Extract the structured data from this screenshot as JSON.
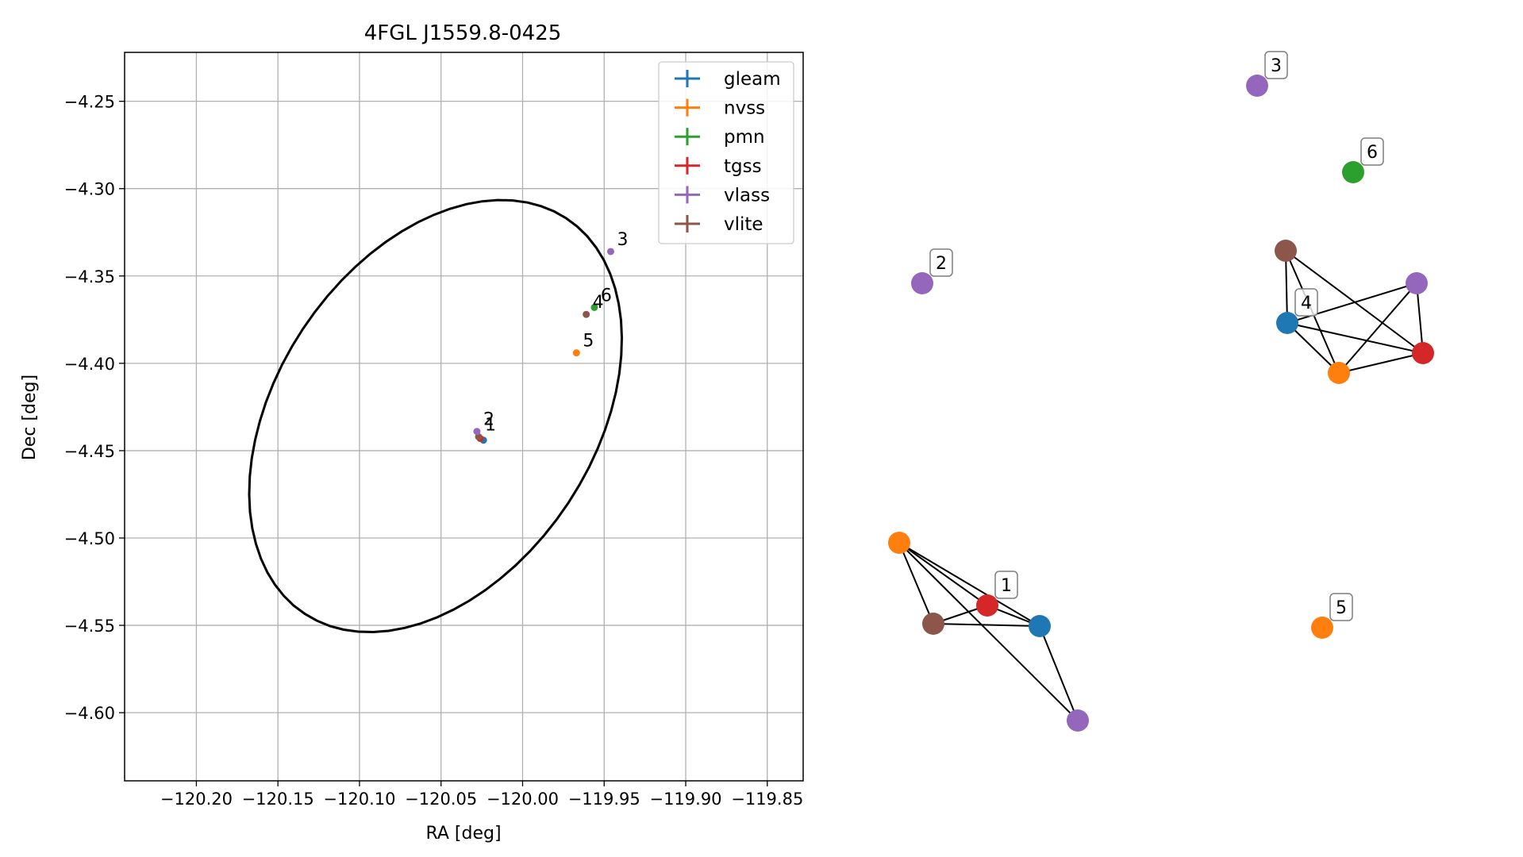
{
  "chart_data": [
    {
      "type": "scatter",
      "title": "4FGL J1559.8-0425",
      "xlabel": "RA [deg]",
      "ylabel": "Dec [deg]",
      "xlim": [
        -120.244,
        -119.828
      ],
      "ylim": [
        -4.639,
        -4.222
      ],
      "grid": true,
      "x_ticks": [
        -120.2,
        -120.15,
        -120.1,
        -120.05,
        -120.0,
        -119.95,
        -119.9,
        -119.85
      ],
      "x_tick_labels": [
        "−120.20",
        "−120.15",
        "−120.10",
        "−120.05",
        "−120.00",
        "−119.95",
        "−119.90",
        "−119.85"
      ],
      "y_ticks": [
        -4.25,
        -4.3,
        -4.35,
        -4.4,
        -4.45,
        -4.5,
        -4.55,
        -4.6
      ],
      "y_tick_labels": [
        "−4.25",
        "−4.30",
        "−4.35",
        "−4.40",
        "−4.45",
        "−4.50",
        "−4.55",
        "−4.60"
      ],
      "legend": {
        "placement": "top-right",
        "entries": [
          {
            "name": "gleam",
            "color": "#1f77b4"
          },
          {
            "name": "nvss",
            "color": "#ff7f0e"
          },
          {
            "name": "pmn",
            "color": "#2ca02c"
          },
          {
            "name": "tgss",
            "color": "#d62728"
          },
          {
            "name": "vlass",
            "color": "#9467bd"
          },
          {
            "name": "vlite",
            "color": "#8c564b"
          }
        ]
      },
      "ellipse": {
        "center": [
          -120.0534,
          -4.4302
        ],
        "semi_major": 0.139,
        "semi_minor": 0.095,
        "angle_deg": 51.3
      },
      "points": [
        {
          "survey": "gleam",
          "x": -120.024,
          "y": -4.444,
          "label": ""
        },
        {
          "survey": "tgss",
          "x": -120.026,
          "y": -4.443,
          "label": ""
        },
        {
          "survey": "vlite",
          "x": -120.027,
          "y": -4.442,
          "label": "1"
        },
        {
          "survey": "vlass",
          "x": -120.028,
          "y": -4.439,
          "label": "2"
        },
        {
          "survey": "nvss",
          "x": -119.967,
          "y": -4.394,
          "label": "5"
        },
        {
          "survey": "pmn",
          "x": -119.956,
          "y": -4.368,
          "label": "6"
        },
        {
          "survey": "vlite",
          "x": -119.961,
          "y": -4.372,
          "label": "4"
        },
        {
          "survey": "vlass",
          "x": -119.946,
          "y": -4.336,
          "label": "3"
        }
      ]
    },
    {
      "type": "network",
      "axes": "off",
      "nodes": [
        {
          "id": "2v",
          "survey": "vlass",
          "label": "2"
        },
        {
          "id": "3v",
          "survey": "vlass",
          "label": "3"
        },
        {
          "id": "6p",
          "survey": "pmn",
          "label": "6"
        },
        {
          "id": "5n",
          "survey": "nvss",
          "label": "5"
        },
        {
          "id": "4vl",
          "survey": "vlite",
          "label": ""
        },
        {
          "id": "4g",
          "survey": "gleam",
          "label": "4"
        },
        {
          "id": "4n",
          "survey": "nvss",
          "label": ""
        },
        {
          "id": "4t",
          "survey": "tgss",
          "label": ""
        },
        {
          "id": "4vs",
          "survey": "vlass",
          "label": ""
        },
        {
          "id": "1n",
          "survey": "nvss",
          "label": ""
        },
        {
          "id": "1vl",
          "survey": "vlite",
          "label": ""
        },
        {
          "id": "1t",
          "survey": "tgss",
          "label": "1"
        },
        {
          "id": "1g",
          "survey": "gleam",
          "label": ""
        },
        {
          "id": "1vs",
          "survey": "vlass",
          "label": ""
        }
      ],
      "edges": [
        [
          "4vl",
          "4g"
        ],
        [
          "4vl",
          "4n"
        ],
        [
          "4vl",
          "4t"
        ],
        [
          "4g",
          "4vs"
        ],
        [
          "4g",
          "4t"
        ],
        [
          "4g",
          "4n"
        ],
        [
          "4n",
          "4vs"
        ],
        [
          "4n",
          "4t"
        ],
        [
          "4vs",
          "4t"
        ],
        [
          "1n",
          "1vl"
        ],
        [
          "1n",
          "1t"
        ],
        [
          "1n",
          "1g"
        ],
        [
          "1n",
          "1vs"
        ],
        [
          "1vl",
          "1t"
        ],
        [
          "1vl",
          "1g"
        ],
        [
          "1t",
          "1g"
        ],
        [
          "1g",
          "1vs"
        ]
      ]
    }
  ]
}
